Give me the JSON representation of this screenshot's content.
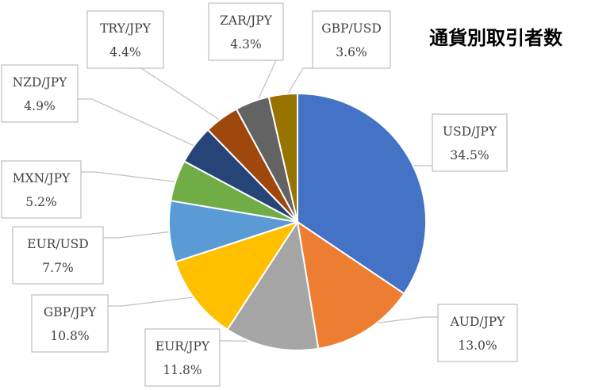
{
  "chart_data": {
    "type": "pie",
    "title": "通貨別取引者数",
    "categories": [
      "USD/JPY",
      "AUD/JPY",
      "EUR/JPY",
      "GBP/JPY",
      "EUR/USD",
      "MXN/JPY",
      "NZD/JPY",
      "TRY/JPY",
      "ZAR/JPY",
      "GBP/USD"
    ],
    "values": [
      34.5,
      13.0,
      11.8,
      10.8,
      7.7,
      5.2,
      4.9,
      4.4,
      4.3,
      3.6
    ],
    "value_labels": [
      "34.5%",
      "13.0%",
      "11.8%",
      "10.8%",
      "7.7%",
      "5.2%",
      "4.9%",
      "4.4%",
      "4.3%",
      "3.6%"
    ],
    "colors": [
      "#4472C4",
      "#ED7D31",
      "#A5A5A5",
      "#FFC000",
      "#5B9BD5",
      "#70AD47",
      "#264478",
      "#9E480E",
      "#636363",
      "#997300"
    ],
    "start_angle": "12 o'clock",
    "direction": "clockwise",
    "data_labels": "callout boxes with leader lines",
    "legend": "none"
  }
}
